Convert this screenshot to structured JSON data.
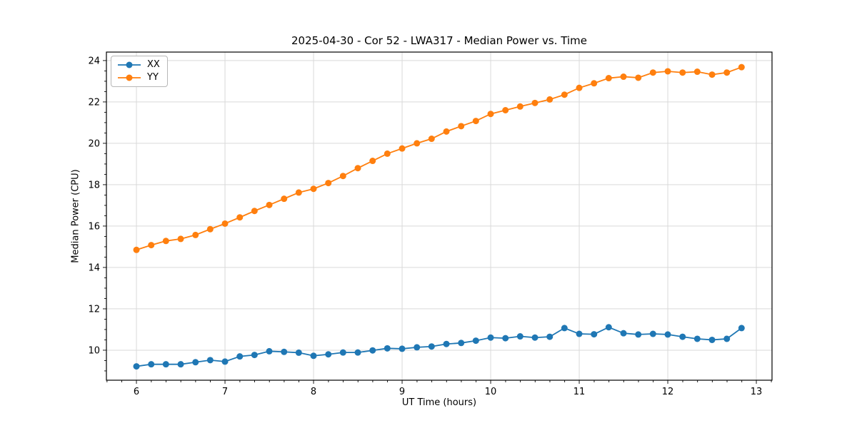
{
  "chart_data": {
    "type": "line",
    "title": "2025-04-30 - Cor 52 - LWA317 - Median Power vs. Time",
    "xlabel": "UT Time (hours)",
    "ylabel": "Median Power (CPU)",
    "xlim": [
      5.661,
      13.177
    ],
    "ylim": [
      8.55,
      24.41
    ],
    "xticks": [
      6,
      7,
      8,
      9,
      10,
      11,
      12,
      13
    ],
    "yticks": [
      10,
      12,
      14,
      16,
      18,
      20,
      22,
      24
    ],
    "x_minor_step": 0.1667,
    "y_minor_step": 0.5,
    "grid": true,
    "grid_color": "#d9d9d9",
    "legend_position": "upper-left",
    "marker": "circle",
    "x": [
      6.0,
      6.167,
      6.333,
      6.5,
      6.667,
      6.833,
      7.0,
      7.167,
      7.333,
      7.5,
      7.667,
      7.833,
      8.0,
      8.167,
      8.333,
      8.5,
      8.667,
      8.833,
      9.0,
      9.167,
      9.333,
      9.5,
      9.667,
      9.833,
      10.0,
      10.167,
      10.333,
      10.5,
      10.667,
      10.833,
      11.0,
      11.167,
      11.333,
      11.5,
      11.667,
      11.833,
      12.0,
      12.167,
      12.333,
      12.5,
      12.667,
      12.833
    ],
    "series": [
      {
        "name": "XX",
        "color": "#1f77b4",
        "values": [
          9.22,
          9.32,
          9.32,
          9.32,
          9.42,
          9.52,
          9.45,
          9.7,
          9.77,
          9.95,
          9.92,
          9.88,
          9.73,
          9.8,
          9.89,
          9.89,
          9.99,
          10.09,
          10.07,
          10.14,
          10.18,
          10.3,
          10.35,
          10.46,
          10.61,
          10.58,
          10.67,
          10.61,
          10.65,
          11.07,
          10.79,
          10.77,
          11.11,
          10.82,
          10.76,
          10.79,
          10.76,
          10.65,
          10.55,
          10.5,
          10.55,
          11.07
        ]
      },
      {
        "name": "YY",
        "color": "#ff7f0e",
        "values": [
          14.85,
          15.08,
          15.28,
          15.38,
          15.57,
          15.85,
          16.12,
          16.42,
          16.73,
          17.02,
          17.32,
          17.62,
          17.8,
          18.08,
          18.42,
          18.8,
          19.15,
          19.5,
          19.75,
          20.0,
          20.22,
          20.57,
          20.83,
          21.08,
          21.42,
          21.6,
          21.78,
          21.95,
          22.12,
          22.35,
          22.68,
          22.9,
          23.15,
          23.22,
          23.17,
          23.42,
          23.48,
          23.42,
          23.46,
          23.32,
          23.42,
          23.68
        ]
      }
    ]
  }
}
